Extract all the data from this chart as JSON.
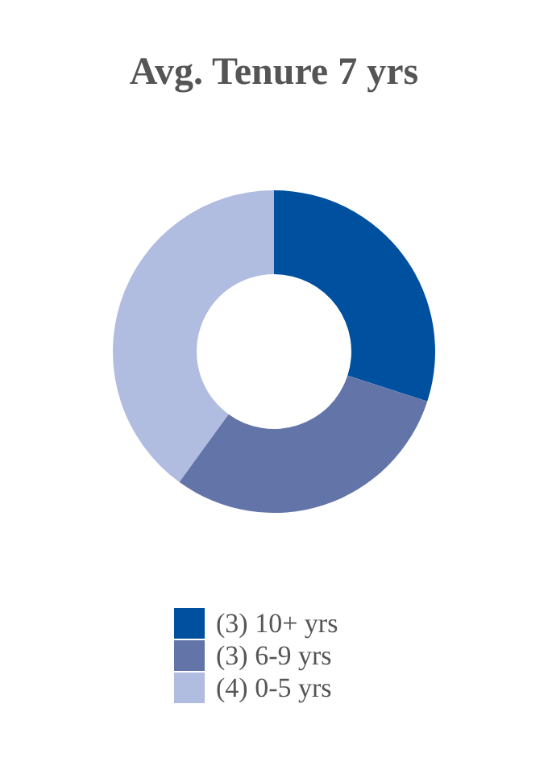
{
  "chart_data": {
    "type": "donut",
    "title": "Avg. Tenure 7 yrs",
    "categories": [
      "(3) 10+ yrs",
      "(3) 6-9 yrs",
      "(4) 0-5 yrs"
    ],
    "values": [
      3,
      3,
      4
    ],
    "colors": [
      "#0050a0",
      "#6374a8",
      "#b0bce0"
    ],
    "legend": "bottom"
  }
}
